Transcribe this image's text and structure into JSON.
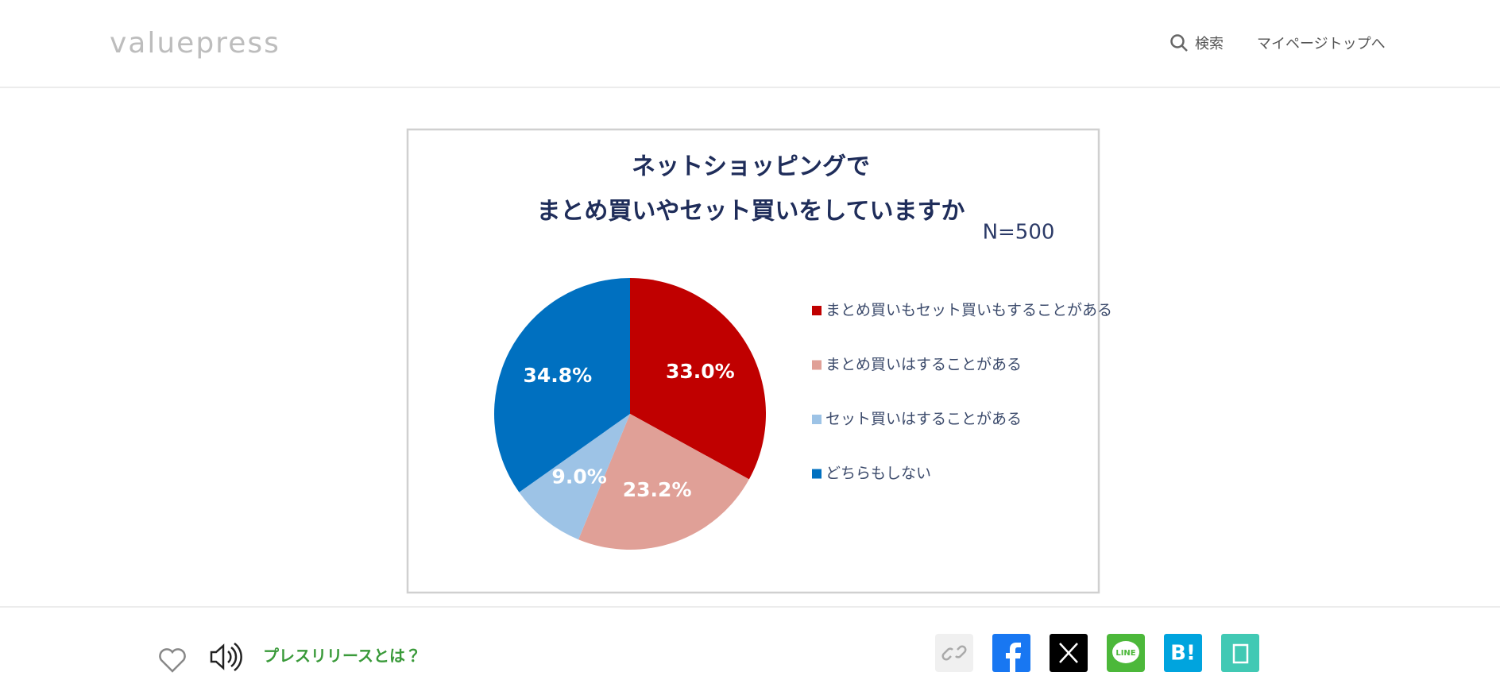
{
  "header": {
    "logo": "valuepress",
    "search": "検索",
    "mypage": "マイページトップへ"
  },
  "chart_data": {
    "type": "pie",
    "title": [
      "ネットショッピングで",
      "まとめ買いやセット買いをしていますか"
    ],
    "annotations": [
      "N=500"
    ],
    "categories": [
      "まとめ買いもセット買いもすることがある",
      "まとめ買いはすることがある",
      "セット買いはすることがある",
      "どちらもしない"
    ],
    "values": [
      33.0,
      23.2,
      9.0,
      34.8
    ],
    "value_labels": [
      "33.0%",
      "23.2%",
      "9.0%",
      "34.8%"
    ],
    "colors": [
      "#c00000",
      "#e0a097",
      "#9dc3e6",
      "#0070c0"
    ],
    "legend": "right"
  },
  "footer": {
    "about": "プレスリリースとは？",
    "line": "LINE",
    "hatena": "B!"
  }
}
